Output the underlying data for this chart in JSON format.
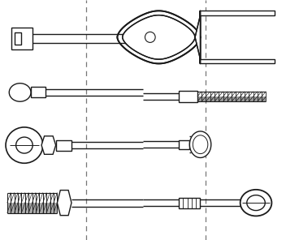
{
  "fig_width": 3.52,
  "fig_height": 2.96,
  "dpi": 100,
  "bg_color": "#ffffff",
  "line_color": "#1a1a1a",
  "lw": 1.0,
  "vx1": 0.3,
  "vx2": 0.72,
  "vlc": "#777777",
  "vlw": 0.9
}
